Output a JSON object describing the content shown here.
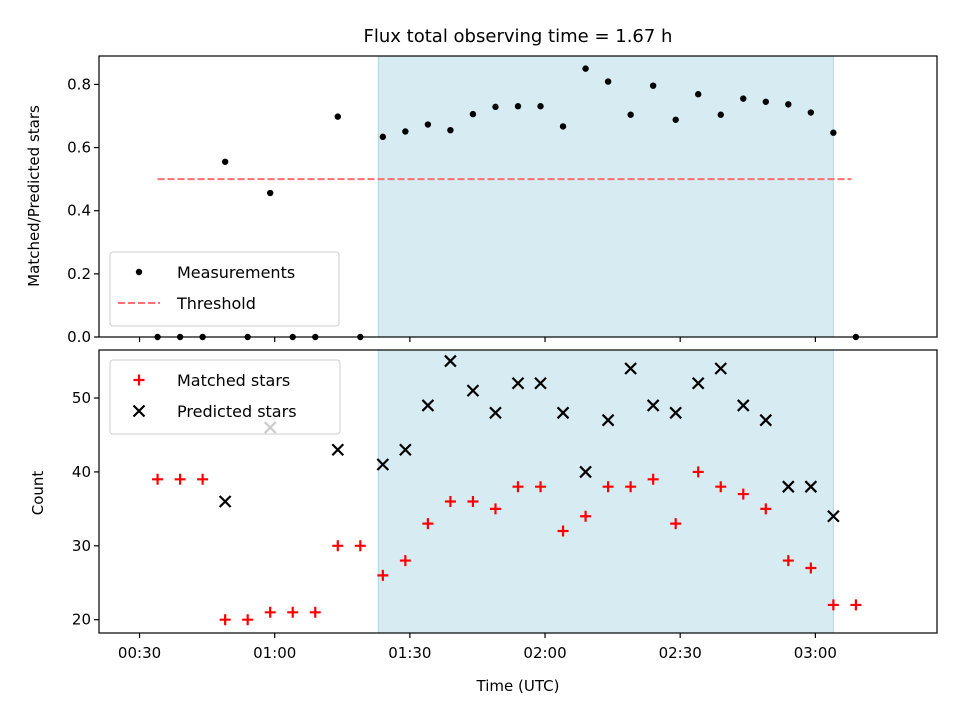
{
  "chart_data": {
    "title": "Flux total observing time = 1.67 h",
    "xlabel": "Time (UTC)",
    "x_unit": "time of day (UTC)",
    "xlim": [
      "00:21",
      "03:27"
    ],
    "x_tick_labels": [
      "00:30",
      "01:00",
      "01:30",
      "02:00",
      "02:30",
      "03:00"
    ],
    "shaded_interval": {
      "start": "01:23",
      "end": "03:04",
      "color": "#add8e6"
    },
    "panels": [
      {
        "type": "scatter",
        "ylabel": "Matched/Predicted stars",
        "ylim": [
          0,
          0.89
        ],
        "y_ticks": [
          0.0,
          0.2,
          0.4,
          0.6,
          0.8
        ],
        "y_tick_labels": [
          "0.0",
          "0.2",
          "0.4",
          "0.6",
          "0.8"
        ],
        "legend_position": "lower-left",
        "series": [
          {
            "name": "Measurements",
            "marker": "dot",
            "color": "#000000",
            "points": [
              {
                "x": "00:34",
                "y": 0.0
              },
              {
                "x": "00:39",
                "y": 0.0
              },
              {
                "x": "00:44",
                "y": 0.0
              },
              {
                "x": "00:49",
                "y": 0.555
              },
              {
                "x": "00:54",
                "y": 0.0
              },
              {
                "x": "00:59",
                "y": 0.456
              },
              {
                "x": "01:04",
                "y": 0.0
              },
              {
                "x": "01:09",
                "y": 0.0
              },
              {
                "x": "01:14",
                "y": 0.698
              },
              {
                "x": "01:19",
                "y": 0.0
              },
              {
                "x": "01:24",
                "y": 0.634
              },
              {
                "x": "01:29",
                "y": 0.651
              },
              {
                "x": "01:34",
                "y": 0.673
              },
              {
                "x": "01:39",
                "y": 0.655
              },
              {
                "x": "01:44",
                "y": 0.706
              },
              {
                "x": "01:49",
                "y": 0.729
              },
              {
                "x": "01:54",
                "y": 0.731
              },
              {
                "x": "01:59",
                "y": 0.731
              },
              {
                "x": "02:04",
                "y": 0.667
              },
              {
                "x": "02:09",
                "y": 0.85
              },
              {
                "x": "02:14",
                "y": 0.809
              },
              {
                "x": "02:19",
                "y": 0.704
              },
              {
                "x": "02:24",
                "y": 0.796
              },
              {
                "x": "02:29",
                "y": 0.688
              },
              {
                "x": "02:34",
                "y": 0.769
              },
              {
                "x": "02:39",
                "y": 0.704
              },
              {
                "x": "02:44",
                "y": 0.755
              },
              {
                "x": "02:49",
                "y": 0.745
              },
              {
                "x": "02:54",
                "y": 0.737
              },
              {
                "x": "02:59",
                "y": 0.711
              },
              {
                "x": "03:04",
                "y": 0.647
              },
              {
                "x": "03:09",
                "y": 0.0
              }
            ]
          },
          {
            "name": "Threshold",
            "marker": "dashed-line",
            "color": "#ff7070",
            "points": [
              {
                "x": "00:34",
                "y": 0.5
              },
              {
                "x": "03:08",
                "y": 0.5
              }
            ]
          }
        ]
      },
      {
        "type": "scatter",
        "ylabel": "Count",
        "ylim": [
          18.2,
          56.5
        ],
        "y_ticks": [
          20,
          30,
          40,
          50
        ],
        "y_tick_labels": [
          "20",
          "30",
          "40",
          "50"
        ],
        "legend_position": "upper-left",
        "series": [
          {
            "name": "Matched stars",
            "marker": "plus",
            "color": "#ff0000",
            "points": [
              {
                "x": "00:34",
                "y": 39
              },
              {
                "x": "00:39",
                "y": 39
              },
              {
                "x": "00:44",
                "y": 39
              },
              {
                "x": "00:49",
                "y": 20
              },
              {
                "x": "00:54",
                "y": 20
              },
              {
                "x": "00:59",
                "y": 21
              },
              {
                "x": "01:04",
                "y": 21
              },
              {
                "x": "01:09",
                "y": 21
              },
              {
                "x": "01:14",
                "y": 30
              },
              {
                "x": "01:19",
                "y": 30
              },
              {
                "x": "01:24",
                "y": 26
              },
              {
                "x": "01:29",
                "y": 28
              },
              {
                "x": "01:34",
                "y": 33
              },
              {
                "x": "01:39",
                "y": 36
              },
              {
                "x": "01:44",
                "y": 36
              },
              {
                "x": "01:49",
                "y": 35
              },
              {
                "x": "01:54",
                "y": 38
              },
              {
                "x": "01:59",
                "y": 38
              },
              {
                "x": "02:04",
                "y": 32
              },
              {
                "x": "02:09",
                "y": 34
              },
              {
                "x": "02:14",
                "y": 38
              },
              {
                "x": "02:19",
                "y": 38
              },
              {
                "x": "02:24",
                "y": 39
              },
              {
                "x": "02:29",
                "y": 33
              },
              {
                "x": "02:34",
                "y": 40
              },
              {
                "x": "02:39",
                "y": 38
              },
              {
                "x": "02:44",
                "y": 37
              },
              {
                "x": "02:49",
                "y": 35
              },
              {
                "x": "02:54",
                "y": 28
              },
              {
                "x": "02:59",
                "y": 27
              },
              {
                "x": "03:04",
                "y": 22
              },
              {
                "x": "03:09",
                "y": 22
              }
            ]
          },
          {
            "name": "Predicted stars",
            "marker": "x",
            "color": "#000000",
            "points": [
              {
                "x": "00:49",
                "y": 36
              },
              {
                "x": "00:59",
                "y": 46
              },
              {
                "x": "01:14",
                "y": 43
              },
              {
                "x": "01:24",
                "y": 41
              },
              {
                "x": "01:29",
                "y": 43
              },
              {
                "x": "01:34",
                "y": 49
              },
              {
                "x": "01:39",
                "y": 55
              },
              {
                "x": "01:44",
                "y": 51
              },
              {
                "x": "01:49",
                "y": 48
              },
              {
                "x": "01:54",
                "y": 52
              },
              {
                "x": "01:59",
                "y": 52
              },
              {
                "x": "02:04",
                "y": 48
              },
              {
                "x": "02:09",
                "y": 40
              },
              {
                "x": "02:14",
                "y": 47
              },
              {
                "x": "02:19",
                "y": 54
              },
              {
                "x": "02:24",
                "y": 49
              },
              {
                "x": "02:29",
                "y": 48
              },
              {
                "x": "02:34",
                "y": 52
              },
              {
                "x": "02:39",
                "y": 54
              },
              {
                "x": "02:44",
                "y": 49
              },
              {
                "x": "02:49",
                "y": 47
              },
              {
                "x": "02:54",
                "y": 38
              },
              {
                "x": "02:59",
                "y": 38
              },
              {
                "x": "03:04",
                "y": 34
              }
            ]
          }
        ]
      }
    ]
  }
}
